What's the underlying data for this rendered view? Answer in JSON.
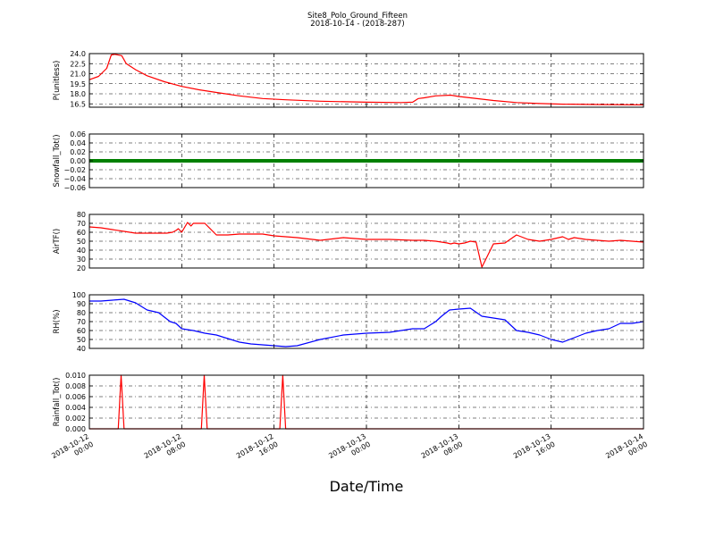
{
  "figure": {
    "title": "Site8_Polo_Ground_Fifteen",
    "subtitle": "2018-10-14 - (2018-287)",
    "xlabel": "Date/Time"
  },
  "chart_data": [
    {
      "type": "line",
      "ylabel": "P(unitless)",
      "ylim": [
        16.0,
        24.0
      ],
      "yticks": [
        "24.0",
        "22.5",
        "21.0",
        "19.5",
        "18.0",
        "16.5"
      ],
      "ytick_values": [
        24.0,
        22.5,
        21.0,
        19.5,
        18.0,
        16.5
      ],
      "xlim": [
        0,
        48
      ],
      "grid": true,
      "series": [
        {
          "color": "#ff0000",
          "x": [
            0,
            0.8,
            1.5,
            1.9,
            2.2,
            2.8,
            3.2,
            4.0,
            5.0,
            6.5,
            8.0,
            9.5,
            11,
            13,
            15,
            17,
            20,
            24,
            27,
            28,
            28.5,
            29,
            30,
            31.3,
            32,
            33,
            35,
            37,
            39,
            41,
            44,
            48
          ],
          "y": [
            20.1,
            20.6,
            21.8,
            23.8,
            23.9,
            23.7,
            22.5,
            21.6,
            20.7,
            19.8,
            19.1,
            18.6,
            18.2,
            17.7,
            17.3,
            17.1,
            16.9,
            16.75,
            16.7,
            16.75,
            17.3,
            17.4,
            17.7,
            17.8,
            17.6,
            17.4,
            17.0,
            16.7,
            16.55,
            16.45,
            16.4,
            16.35
          ]
        }
      ]
    },
    {
      "type": "line",
      "ylabel": "Snowfall_Tot()",
      "ylim": [
        -0.06,
        0.06
      ],
      "yticks": [
        "0.06",
        "0.04",
        "0.02",
        "0.00",
        "−0.02",
        "−0.04",
        "−0.06"
      ],
      "ytick_values": [
        0.06,
        0.04,
        0.02,
        0.0,
        -0.02,
        -0.04,
        -0.06
      ],
      "xlim": [
        0,
        48
      ],
      "grid": true,
      "series": [
        {
          "color": "#008000",
          "x": [
            0,
            48
          ],
          "y": [
            0,
            0
          ]
        }
      ]
    },
    {
      "type": "line",
      "ylabel": "AirTF()",
      "ylim": [
        20,
        80
      ],
      "yticks": [
        "80",
        "70",
        "60",
        "50",
        "40",
        "30",
        "20"
      ],
      "ytick_values": [
        80,
        70,
        60,
        50,
        40,
        30,
        20
      ],
      "xlim": [
        0,
        48
      ],
      "grid": true,
      "series": [
        {
          "color": "#ff0000",
          "x": [
            0,
            1,
            2,
            3,
            4,
            5,
            6,
            6.7,
            7.2,
            7.5,
            7.7,
            8.0,
            8.5,
            8.8,
            9.0,
            9.3,
            10,
            11,
            12,
            13,
            14,
            15,
            16,
            17,
            18,
            20,
            22,
            24,
            26,
            28,
            29,
            30,
            31,
            31.3,
            31.6,
            32,
            32.5,
            33,
            33.5,
            34,
            35,
            36,
            37,
            38,
            39,
            40,
            41,
            41.5,
            42,
            43,
            44,
            45,
            46,
            47,
            48
          ],
          "y": [
            66,
            65,
            63,
            61,
            59,
            59,
            59,
            59,
            60,
            62,
            64,
            60,
            71,
            67,
            70,
            70,
            70,
            57,
            57,
            58,
            58,
            58,
            56,
            55,
            54,
            51,
            54,
            52,
            52,
            51,
            51,
            50,
            48,
            47,
            48,
            47,
            48,
            50,
            49,
            21,
            47,
            48,
            57,
            52,
            50,
            52,
            55,
            52,
            54,
            52,
            51,
            50,
            51,
            50,
            49
          ]
        }
      ]
    },
    {
      "type": "line",
      "ylabel": "RH(%)",
      "ylim": [
        40,
        100
      ],
      "yticks": [
        "100",
        "90",
        "80",
        "70",
        "60",
        "50",
        "40"
      ],
      "ytick_values": [
        100,
        90,
        80,
        70,
        60,
        50,
        40
      ],
      "xlim": [
        0,
        48
      ],
      "grid": true,
      "series": [
        {
          "color": "#0000ff",
          "x": [
            0,
            1,
            2,
            3,
            4,
            5,
            6,
            7,
            7.5,
            8,
            9,
            10,
            11,
            12,
            13,
            14,
            15,
            16,
            17,
            18,
            20,
            22,
            24,
            26,
            28,
            29,
            30,
            30.5,
            31.2,
            32,
            33,
            34,
            35,
            36,
            37,
            38,
            39,
            40,
            41,
            42,
            43,
            44,
            45,
            46,
            47,
            48
          ],
          "y": [
            93,
            93,
            94,
            95,
            91,
            83,
            80,
            70,
            68,
            62,
            60,
            57,
            55,
            51,
            47,
            45,
            44,
            43,
            42,
            43,
            50,
            55,
            57,
            58,
            62,
            62,
            70,
            76,
            83,
            84,
            85,
            76,
            74,
            72,
            60,
            58,
            55,
            50,
            47,
            52,
            57,
            60,
            62,
            68,
            68,
            70
          ]
        }
      ]
    },
    {
      "type": "line",
      "ylabel": "Rainfall_Tot()",
      "ylim": [
        0,
        0.01
      ],
      "yticks": [
        "0.010",
        "0.008",
        "0.006",
        "0.004",
        "0.002",
        "0.000"
      ],
      "ytick_values": [
        0.01,
        0.008,
        0.006,
        0.004,
        0.002,
        0.0
      ],
      "xlim": [
        0,
        48
      ],
      "grid": true,
      "xtick_values": [
        0,
        8,
        16,
        24,
        32,
        40,
        48
      ],
      "xticks": [
        [
          "2018-10-12",
          "00:00"
        ],
        [
          "2018-10-12",
          "08:00"
        ],
        [
          "2018-10-12",
          "16:00"
        ],
        [
          "2018-10-13",
          "00:00"
        ],
        [
          "2018-10-13",
          "08:00"
        ],
        [
          "2018-10-13",
          "16:00"
        ],
        [
          "2018-10-14",
          "00:00"
        ]
      ],
      "series": [
        {
          "color": "#ff0000",
          "x": [
            0,
            2.5,
            2.75,
            3.0,
            9.7,
            9.95,
            10.2,
            16.5,
            16.75,
            17.0,
            48
          ],
          "y": [
            0,
            0,
            0.01,
            0,
            0,
            0.01,
            0,
            0,
            0.01,
            0,
            0
          ]
        }
      ]
    }
  ]
}
